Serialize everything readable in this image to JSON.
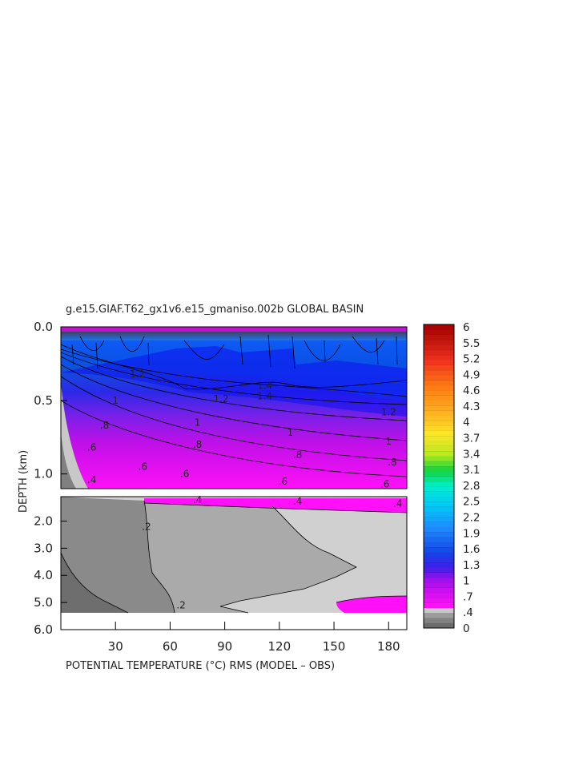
{
  "chart_data": {
    "type": "heatmap",
    "title": "g.e15.GIAF.T62_gx1v6.e15_gmaniso.002b GLOBAL BASIN",
    "xlabel": "POTENTIAL TEMPERATURE (°C) RMS (MODEL – OBS)",
    "ylabel": "DEPTH (km)",
    "x_ticks": [
      "30",
      "60",
      "90",
      "120",
      "150",
      "180"
    ],
    "x_range": [
      0,
      190
    ],
    "upper_panel": {
      "y_range_km": [
        0.0,
        1.1
      ],
      "y_ticks": [
        "0.0",
        "0.5",
        "1.0"
      ]
    },
    "lower_panel": {
      "y_range_km": [
        1.1,
        6.0
      ],
      "y_ticks": [
        "2.0",
        "3.0",
        "4.0",
        "5.0",
        "6.0"
      ]
    },
    "colorbar": {
      "labels": [
        "6",
        "5.5",
        "5.2",
        "4.9",
        "4.6",
        "4.3",
        "4",
        "3.7",
        "3.4",
        "3.1",
        "2.8",
        "2.5",
        "2.2",
        "1.9",
        "1.6",
        "1.3",
        "1",
        ".7",
        ".4",
        "0"
      ],
      "range": [
        0,
        6
      ]
    },
    "contour_labels": [
      {
        "panel": "upper",
        "x": 45,
        "depth_km": 0.95,
        "text": ".6"
      },
      {
        "panel": "upper",
        "x": 68,
        "depth_km": 1.0,
        "text": ".6"
      },
      {
        "panel": "upper",
        "x": 122,
        "depth_km": 1.05,
        "text": ".6"
      },
      {
        "panel": "upper",
        "x": 17,
        "depth_km": 0.82,
        "text": ".6"
      },
      {
        "panel": "upper",
        "x": 178,
        "depth_km": 1.07,
        "text": ".6"
      },
      {
        "panel": "upper",
        "x": 24,
        "depth_km": 0.67,
        "text": ".8"
      },
      {
        "panel": "upper",
        "x": 75,
        "depth_km": 0.8,
        "text": ".8"
      },
      {
        "panel": "upper",
        "x": 130,
        "depth_km": 0.87,
        "text": ".8"
      },
      {
        "panel": "upper",
        "x": 182,
        "depth_km": 0.92,
        "text": ".8"
      },
      {
        "panel": "upper",
        "x": 30,
        "depth_km": 0.5,
        "text": "1"
      },
      {
        "panel": "upper",
        "x": 75,
        "depth_km": 0.65,
        "text": "1"
      },
      {
        "panel": "upper",
        "x": 126,
        "depth_km": 0.72,
        "text": "1"
      },
      {
        "panel": "upper",
        "x": 180,
        "depth_km": 0.78,
        "text": "1"
      },
      {
        "panel": "upper",
        "x": 42,
        "depth_km": 0.32,
        "text": "1.2"
      },
      {
        "panel": "upper",
        "x": 88,
        "depth_km": 0.49,
        "text": "1.2"
      },
      {
        "panel": "upper",
        "x": 180,
        "depth_km": 0.58,
        "text": "1.2"
      },
      {
        "panel": "upper",
        "x": 112,
        "depth_km": 0.4,
        "text": "1.4"
      },
      {
        "panel": "upper",
        "x": 112,
        "depth_km": 0.47,
        "text": "1.4"
      },
      {
        "panel": "upper",
        "x": 17,
        "depth_km": 1.04,
        "text": ".4"
      },
      {
        "panel": "lower",
        "x": 75,
        "depth_km": 1.22,
        "text": ".4"
      },
      {
        "panel": "lower",
        "x": 130,
        "depth_km": 1.28,
        "text": ".4"
      },
      {
        "panel": "lower",
        "x": 185,
        "depth_km": 1.35,
        "text": ".4"
      },
      {
        "panel": "lower",
        "x": 47,
        "depth_km": 2.2,
        "text": ".2"
      },
      {
        "panel": "lower",
        "x": 66,
        "depth_km": 5.1,
        "text": ".2"
      }
    ]
  }
}
